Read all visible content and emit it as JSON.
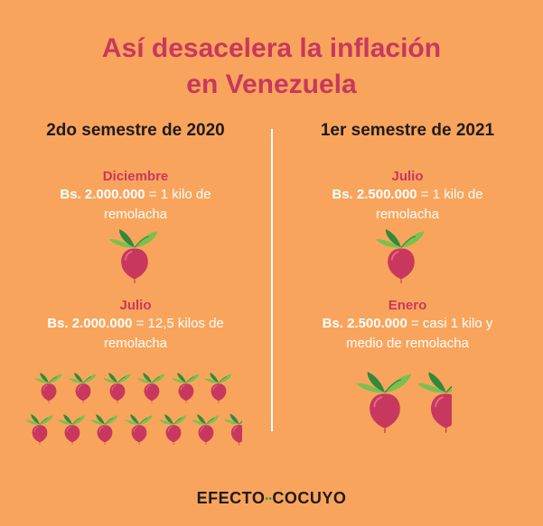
{
  "title_line1": "Así desacelera la inflación",
  "title_line2": "en Venezuela",
  "left": {
    "heading": "2do semestre de 2020",
    "block1": {
      "month": "Diciembre",
      "amount": "Bs. 2.000.000",
      "rest": " = 1 kilo de",
      "line2": "remolacha"
    },
    "block2": {
      "month": "Julio",
      "amount": "Bs. 2.000.000",
      "rest": " = 12,5 kilos de",
      "line2": "remolacha"
    }
  },
  "right": {
    "heading": "1er semestre de 2021",
    "block1": {
      "month": "Julio",
      "amount": "Bs. 2.500.000",
      "rest": " = 1 kilo de",
      "line2": "remolacha"
    },
    "block2": {
      "month": "Enero",
      "amount": "Bs. 2.500.000",
      "rest": " = casi 1 kilo y",
      "line2": "medio de remolacha"
    }
  },
  "brand": {
    "left": "EFECTO",
    "sep": "••",
    "right": "COCUYO"
  },
  "colors": {
    "background": "#F9A45C",
    "accent": "#C8385E",
    "beet": "#C8385E",
    "leaf": "#7BC04F"
  },
  "beet_counts": {
    "left_dec": 1,
    "left_jul": 12.5,
    "right_jul": 1,
    "right_ene": 1.5
  }
}
